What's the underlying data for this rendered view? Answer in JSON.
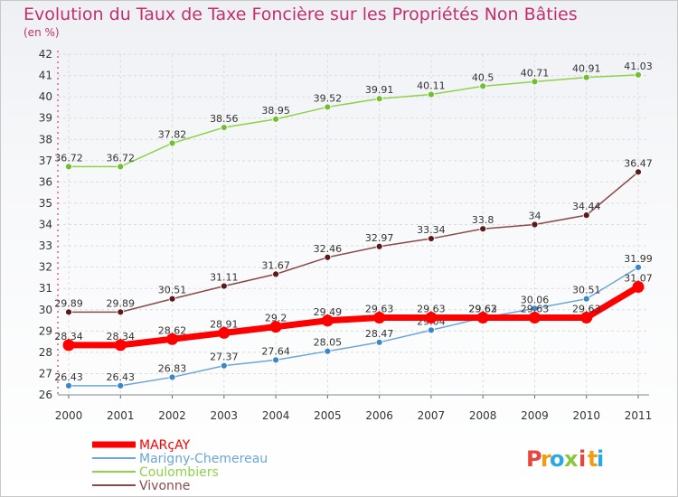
{
  "title": "Evolution du Taux de Taxe Foncière sur les Propriétés Non Bâties",
  "subtitle": "(en %)",
  "brand": {
    "letters": [
      "P",
      "r",
      "o",
      "x",
      "i",
      "t",
      "i"
    ],
    "colors": [
      "#e8453c",
      "#f39c12",
      "#27a9e1",
      "#8cc63f",
      "#e8453c",
      "#f39c12",
      "#27a9e1"
    ]
  },
  "chart_data": {
    "type": "line",
    "x": [
      "2000",
      "2001",
      "2002",
      "2003",
      "2004",
      "2005",
      "2006",
      "2007",
      "2008",
      "2009",
      "2010",
      "2011"
    ],
    "ylim": [
      26,
      42
    ],
    "yticks": [
      "26",
      "27",
      "28",
      "29",
      "30",
      "31",
      "32",
      "33",
      "34",
      "35",
      "36",
      "37",
      "38",
      "39",
      "40",
      "41",
      "42"
    ],
    "grid": true,
    "legend_position": "bottom-left",
    "series": [
      {
        "name": "Coulombiers",
        "color": "#8fd24a",
        "marker": "#6fbf30",
        "width": 1.5,
        "values": [
          36.72,
          36.72,
          37.82,
          38.56,
          38.95,
          39.52,
          39.91,
          40.11,
          40.5,
          40.71,
          40.91,
          41.03
        ],
        "labels": [
          "36.72",
          "36.72",
          "37.82",
          "38.56",
          "38.95",
          "39.52",
          "39.91",
          "40.11",
          "40.5",
          "40.71",
          "40.91",
          "41.03"
        ]
      },
      {
        "name": "Vivonne",
        "color": "#8a4a4a",
        "marker": "#5a1a1a",
        "width": 1.5,
        "values": [
          29.89,
          29.89,
          30.51,
          31.11,
          31.67,
          32.46,
          32.97,
          33.34,
          33.8,
          34,
          34.44,
          36.47
        ],
        "labels": [
          "29.89",
          "29.89",
          "30.51",
          "31.11",
          "31.67",
          "32.46",
          "32.97",
          "33.34",
          "33.8",
          "34",
          "34.44",
          "36.47"
        ]
      },
      {
        "name": "Marigny-Chemereau",
        "color": "#6aa6d8",
        "marker": "#3a86c8",
        "width": 1.5,
        "values": [
          26.43,
          26.43,
          26.83,
          27.37,
          27.64,
          28.05,
          28.47,
          29.04,
          29.62,
          30.06,
          30.51,
          31.99
        ],
        "labels": [
          "26.43",
          "26.43",
          "26.83",
          "27.37",
          "27.64",
          "28.05",
          "28.47",
          "29.04",
          "29.62",
          "30.06",
          "30.51",
          "31.99"
        ]
      },
      {
        "name": "MARçAY",
        "color": "#ff0000",
        "marker": "#ff0000",
        "width": 7,
        "values": [
          28.34,
          28.34,
          28.62,
          28.91,
          29.2,
          29.49,
          29.63,
          29.63,
          29.63,
          29.63,
          29.63,
          31.07
        ],
        "labels": [
          "28.34",
          "28.34",
          "28.62",
          "28.91",
          "29.2",
          "29.49",
          "29.63",
          "29.63",
          "29.63",
          "29.63",
          "29.63",
          "31.07"
        ]
      }
    ],
    "legend": [
      {
        "name": "MARçAY",
        "color": "#ff0000",
        "width": 7
      },
      {
        "name": "Marigny-Chemereau",
        "color": "#6aa6d8",
        "width": 2
      },
      {
        "name": "Coulombiers",
        "color": "#8fd24a",
        "width": 2
      },
      {
        "name": "Vivonne",
        "color": "#8a4a4a",
        "width": 2
      }
    ]
  }
}
